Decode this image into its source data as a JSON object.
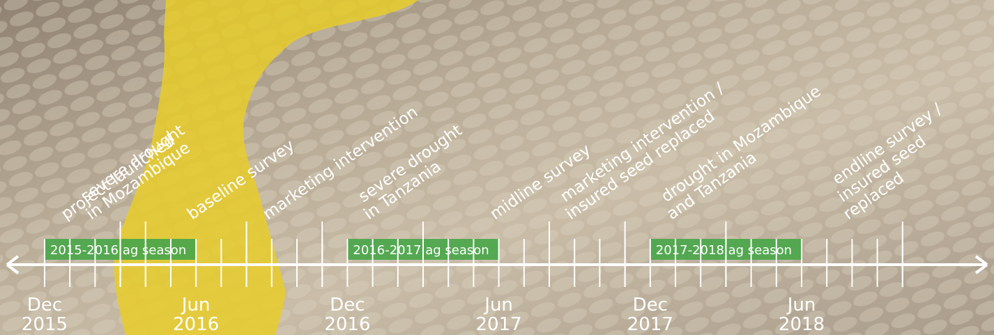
{
  "events": [
    {
      "lines": [
        "project launched"
      ]
    },
    {
      "lines": [
        "severe drought",
        "in Mozambique"
      ]
    },
    {
      "lines": [
        "baseline survey"
      ]
    },
    {
      "lines": [
        "marketing intervention"
      ]
    },
    {
      "lines": [
        "severe drought",
        "in Tanzania"
      ]
    },
    {
      "lines": [
        "midline survey"
      ]
    },
    {
      "lines": [
        "marketing intervention /",
        "insured seed replaced"
      ]
    },
    {
      "lines": [
        "drought in Mozambique",
        "and Tanzania"
      ]
    },
    {
      "lines": [
        "endline survey /",
        "insured seed",
        "replaced"
      ]
    }
  ],
  "seasons": [
    "2015-2016 ag season",
    "2016-2017 ag season",
    "2017-2018 ag season"
  ],
  "dates": [
    {
      "month": "Dec",
      "year": "2015"
    },
    {
      "month": "Jun",
      "year": "2016"
    },
    {
      "month": "Dec",
      "year": "2016"
    },
    {
      "month": "Jun",
      "year": "2017"
    },
    {
      "month": "Dec",
      "year": "2017"
    },
    {
      "month": "Jun",
      "year": "2018"
    }
  ]
}
